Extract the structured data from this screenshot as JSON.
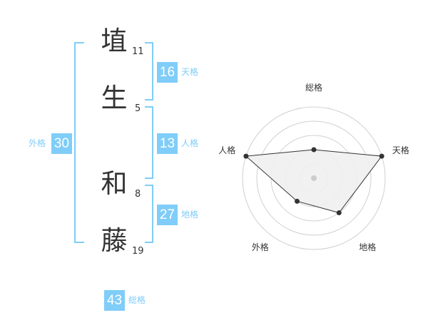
{
  "name_chars": [
    {
      "char": "埴",
      "strokes": "11"
    },
    {
      "char": "生",
      "strokes": "5"
    },
    {
      "char": "和",
      "strokes": "8"
    },
    {
      "char": "藤",
      "strokes": "19"
    }
  ],
  "kaku": {
    "tenkaku": {
      "value": "16",
      "label": "天格"
    },
    "jinkaku": {
      "value": "13",
      "label": "人格"
    },
    "chikaku": {
      "value": "27",
      "label": "地格"
    },
    "gaikaku": {
      "value": "30",
      "label": "外格"
    },
    "soukaku": {
      "value": "43",
      "label": "総格"
    }
  },
  "colors": {
    "accent": "#7fcdf8",
    "polygon_fill": "#f0f0f0",
    "ring": "#d0d0d0"
  },
  "chart_data": {
    "type": "radar",
    "axes": [
      "総格",
      "天格",
      "地格",
      "外格",
      "人格"
    ],
    "values": [
      2,
      5,
      3,
      2,
      5
    ],
    "range": [
      0,
      5
    ],
    "rings": 5
  }
}
